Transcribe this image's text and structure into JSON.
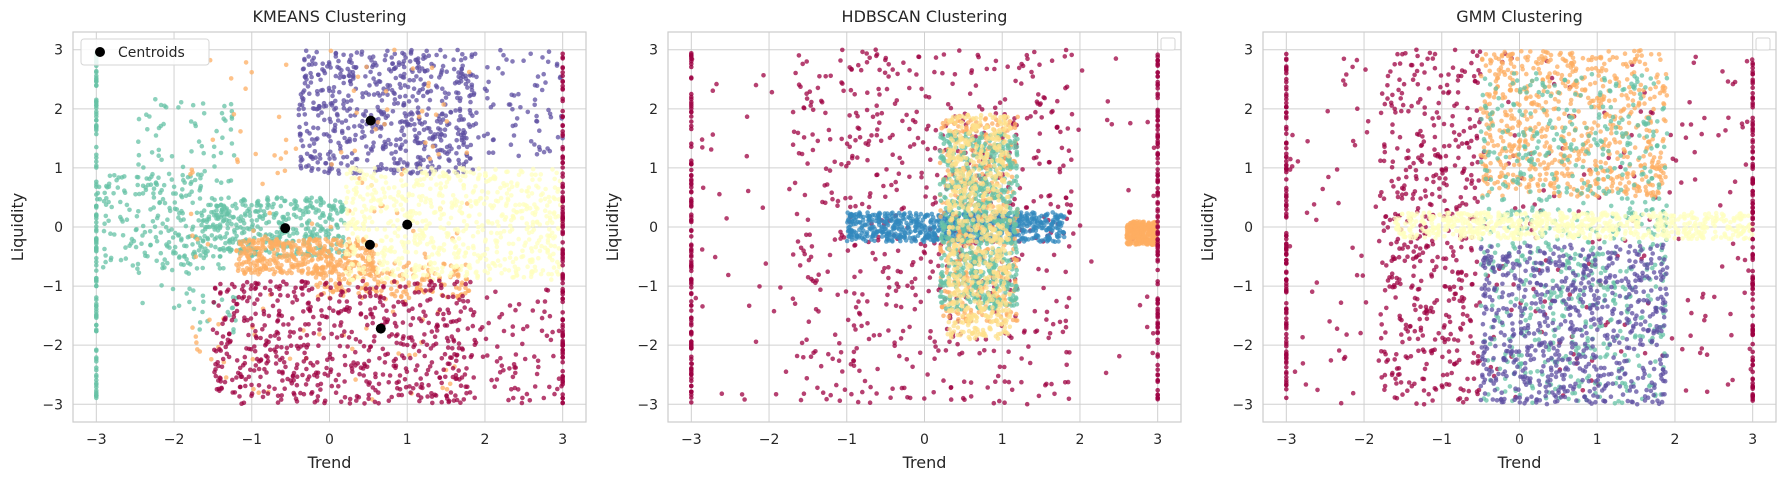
{
  "chart_data": [
    {
      "type": "scatter",
      "title": "KMEANS Clustering",
      "xlabel": "Trend",
      "ylabel": "Liquidity",
      "xlim": [
        -3.3,
        3.3
      ],
      "ylim": [
        -3.3,
        3.3
      ],
      "xticks": [
        -3,
        -2,
        -1,
        0,
        1,
        2,
        3
      ],
      "yticks": [
        -3,
        -2,
        -1,
        0,
        1,
        2,
        3
      ],
      "xtick_labels": [
        "−3",
        "−2",
        "−1",
        "0",
        "1",
        "2",
        "3"
      ],
      "ytick_labels": [
        "−3",
        "−2",
        "−1",
        "0",
        "1",
        "2",
        "3"
      ],
      "grid": true,
      "legend": {
        "position": "top-left",
        "entries": [
          {
            "label": "Centroids",
            "color": "#000000"
          }
        ]
      },
      "clusters": [
        {
          "color": "#5e4fa2",
          "regions": [
            {
              "x": [
                -0.4,
                1.9
              ],
              "y": [
                0.9,
                3.0
              ],
              "weight": 0.9
            },
            {
              "x": [
                1.9,
                3.0
              ],
              "y": [
                1.2,
                3.0
              ],
              "weight": 0.1
            }
          ]
        },
        {
          "color": "#66c2a5",
          "regions": [
            {
              "x": [
                -1.6,
                0.2
              ],
              "y": [
                -0.5,
                0.5
              ],
              "weight": 0.55
            },
            {
              "x": [
                -3.0,
                -1.6
              ],
              "y": [
                -0.7,
                0.9
              ],
              "weight": 0.25
            },
            {
              "x": [
                -2.5,
                -1.2
              ],
              "y": [
                -1.8,
                2.2
              ],
              "weight": 0.2
            }
          ]
        },
        {
          "color": "#fdae61",
          "regions": [
            {
              "x": [
                -1.2,
                0.6
              ],
              "y": [
                -0.8,
                -0.2
              ],
              "weight": 0.55
            },
            {
              "x": [
                -0.2,
                1.8
              ],
              "y": [
                -1.2,
                -0.6
              ],
              "weight": 0.25
            },
            {
              "x": [
                -1.8,
                1.8
              ],
              "y": [
                -3.0,
                3.0
              ],
              "weight": 0.2
            }
          ]
        },
        {
          "color": "#ffffbf",
          "regions": [
            {
              "x": [
                0.2,
                3.0
              ],
              "y": [
                -0.9,
                1.0
              ],
              "weight": 1.0
            }
          ]
        },
        {
          "color": "#9e0142",
          "regions": [
            {
              "x": [
                -1.5,
                1.9
              ],
              "y": [
                -3.0,
                -0.9
              ],
              "weight": 0.9
            },
            {
              "x": [
                1.9,
                3.0
              ],
              "y": [
                -3.0,
                -1.0
              ],
              "weight": 0.1
            }
          ]
        }
      ],
      "edge_lines": [
        {
          "x": -3.0,
          "color": "#66c2a5"
        },
        {
          "x": 3.0,
          "color": "#9e0142"
        }
      ],
      "centroids": [
        {
          "x": 0.53,
          "y": 1.8
        },
        {
          "x": -0.57,
          "y": -0.02
        },
        {
          "x": 1.0,
          "y": 0.04
        },
        {
          "x": 0.52,
          "y": -0.3
        },
        {
          "x": 0.66,
          "y": -1.72
        }
      ]
    },
    {
      "type": "scatter",
      "title": "HDBSCAN Clustering",
      "xlabel": "Trend",
      "ylabel": "Liquidity",
      "xlim": [
        -3.3,
        3.3
      ],
      "ylim": [
        -3.3,
        3.3
      ],
      "xticks": [
        -3,
        -2,
        -1,
        0,
        1,
        2,
        3
      ],
      "yticks": [
        -3,
        -2,
        -1,
        0,
        1,
        2,
        3
      ],
      "xtick_labels": [
        "−3",
        "−2",
        "−1",
        "0",
        "1",
        "2",
        "3"
      ],
      "ytick_labels": [
        "−3",
        "−2",
        "−1",
        "0",
        "1",
        "2",
        "3"
      ],
      "grid": true,
      "legend": {
        "position": "top-right",
        "entries": []
      },
      "clusters": [
        {
          "color": "#9e0142",
          "regions": [
            {
              "x": [
                -1.7,
                1.9
              ],
              "y": [
                -3.0,
                3.0
              ],
              "weight": 0.82
            },
            {
              "x": [
                -3.0,
                3.0
              ],
              "y": [
                -3.0,
                3.0
              ],
              "weight": 0.18
            }
          ]
        },
        {
          "color": "#3288bd",
          "regions": [
            {
              "x": [
                -1.0,
                1.8
              ],
              "y": [
                -0.25,
                0.25
              ],
              "weight": 1.0
            }
          ]
        },
        {
          "color": "#fdae61",
          "regions": [
            {
              "x": [
                0.2,
                1.2
              ],
              "y": [
                -1.6,
                1.9
              ],
              "weight": 0.6
            },
            {
              "x": [
                2.6,
                3.0
              ],
              "y": [
                -0.3,
                0.1
              ],
              "weight": 0.4
            }
          ]
        },
        {
          "color": "#66c2a5",
          "regions": [
            {
              "x": [
                0.2,
                1.2
              ],
              "y": [
                -1.4,
                1.6
              ],
              "weight": 1.0
            }
          ]
        },
        {
          "color": "#fee08b",
          "regions": [
            {
              "x": [
                0.3,
                1.1
              ],
              "y": [
                -1.9,
                1.9
              ],
              "weight": 1.0
            }
          ]
        }
      ],
      "edge_lines": [
        {
          "x": -3.0,
          "color": "#9e0142"
        },
        {
          "x": 3.0,
          "color": "#9e0142"
        }
      ],
      "centroids": []
    },
    {
      "type": "scatter",
      "title": "GMM Clustering",
      "xlabel": "Trend",
      "ylabel": "Liquidity",
      "xlim": [
        -3.3,
        3.3
      ],
      "ylim": [
        -3.3,
        3.3
      ],
      "xticks": [
        -3,
        -2,
        -1,
        0,
        1,
        2,
        3
      ],
      "yticks": [
        -3,
        -2,
        -1,
        0,
        1,
        2,
        3
      ],
      "xtick_labels": [
        "−3",
        "−2",
        "−1",
        "0",
        "1",
        "2",
        "3"
      ],
      "ytick_labels": [
        "−3",
        "−2",
        "−1",
        "0",
        "1",
        "2",
        "3"
      ],
      "grid": true,
      "legend": {
        "position": "top-right",
        "entries": []
      },
      "clusters": [
        {
          "color": "#9e0142",
          "regions": [
            {
              "x": [
                -1.8,
                -0.5
              ],
              "y": [
                -3.0,
                3.0
              ],
              "weight": 0.6
            },
            {
              "x": [
                -3.0,
                3.0
              ],
              "y": [
                -3.0,
                3.0
              ],
              "weight": 0.4
            }
          ]
        },
        {
          "color": "#fdae61",
          "regions": [
            {
              "x": [
                -0.5,
                1.9
              ],
              "y": [
                0.5,
                3.0
              ],
              "weight": 1.0
            }
          ]
        },
        {
          "color": "#66c2a5",
          "regions": [
            {
              "x": [
                -0.5,
                1.9
              ],
              "y": [
                -3.0,
                2.6
              ],
              "weight": 1.0
            }
          ]
        },
        {
          "color": "#5e4fa2",
          "regions": [
            {
              "x": [
                -0.5,
                1.9
              ],
              "y": [
                -3.0,
                -0.3
              ],
              "weight": 1.0
            }
          ]
        },
        {
          "color": "#ffffbf",
          "regions": [
            {
              "x": [
                -1.6,
                3.0
              ],
              "y": [
                -0.2,
                0.25
              ],
              "weight": 1.0
            }
          ]
        }
      ],
      "edge_lines": [
        {
          "x": -3.0,
          "color": "#9e0142"
        },
        {
          "x": 3.0,
          "color": "#9e0142"
        }
      ],
      "centroids": []
    }
  ]
}
